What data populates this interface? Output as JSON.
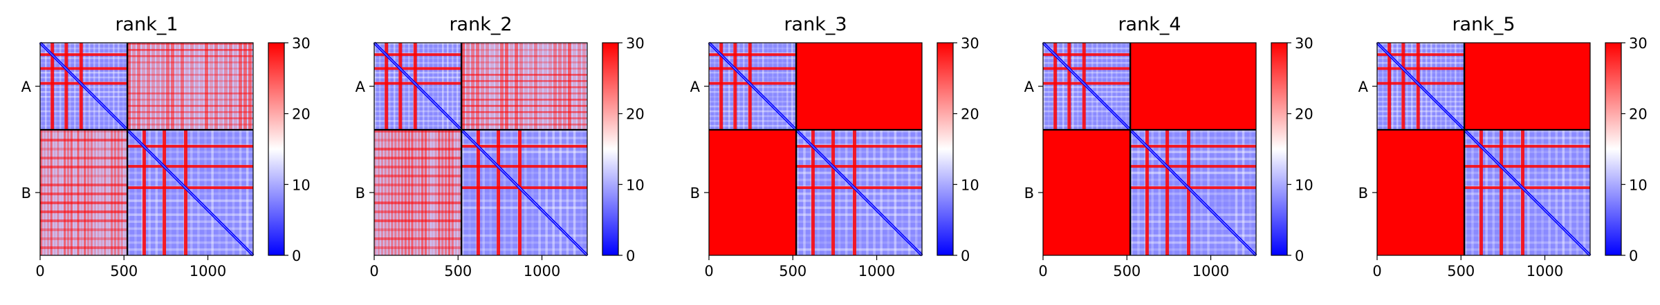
{
  "chart_data": [
    {
      "type": "heatmap",
      "title": "rank_1",
      "x_ticks": [
        0,
        500,
        1000
      ],
      "xlim": [
        0,
        1270
      ],
      "y_ticks": [
        "A",
        "B"
      ],
      "chain_boundary": 520,
      "colorbar": {
        "ticks": [
          0,
          10,
          20,
          30
        ],
        "range": [
          0,
          30
        ],
        "colors": [
          "#0000ff",
          "#ffffff",
          "#ff0000"
        ]
      },
      "cross_block": "mixed"
    },
    {
      "type": "heatmap",
      "title": "rank_2",
      "x_ticks": [
        0,
        500,
        1000
      ],
      "xlim": [
        0,
        1270
      ],
      "y_ticks": [
        "A",
        "B"
      ],
      "chain_boundary": 520,
      "colorbar": {
        "ticks": [
          0,
          10,
          20,
          30
        ],
        "range": [
          0,
          30
        ],
        "colors": [
          "#0000ff",
          "#ffffff",
          "#ff0000"
        ]
      },
      "cross_block": "mixed"
    },
    {
      "type": "heatmap",
      "title": "rank_3",
      "x_ticks": [
        0,
        500,
        1000
      ],
      "xlim": [
        0,
        1270
      ],
      "y_ticks": [
        "A",
        "B"
      ],
      "chain_boundary": 520,
      "colorbar": {
        "ticks": [
          0,
          10,
          20,
          30
        ],
        "range": [
          0,
          30
        ],
        "colors": [
          "#0000ff",
          "#ffffff",
          "#ff0000"
        ]
      },
      "cross_block": "high"
    },
    {
      "type": "heatmap",
      "title": "rank_4",
      "x_ticks": [
        0,
        500,
        1000
      ],
      "xlim": [
        0,
        1270
      ],
      "y_ticks": [
        "A",
        "B"
      ],
      "chain_boundary": 520,
      "colorbar": {
        "ticks": [
          0,
          10,
          20,
          30
        ],
        "range": [
          0,
          30
        ],
        "colors": [
          "#0000ff",
          "#ffffff",
          "#ff0000"
        ]
      },
      "cross_block": "high"
    },
    {
      "type": "heatmap",
      "title": "rank_5",
      "x_ticks": [
        0,
        500,
        1000
      ],
      "xlim": [
        0,
        1270
      ],
      "y_ticks": [
        "A",
        "B"
      ],
      "chain_boundary": 520,
      "colorbar": {
        "ticks": [
          0,
          10,
          20,
          30
        ],
        "range": [
          0,
          30
        ],
        "colors": [
          "#0000ff",
          "#ffffff",
          "#ff0000"
        ]
      },
      "cross_block": "high"
    }
  ]
}
